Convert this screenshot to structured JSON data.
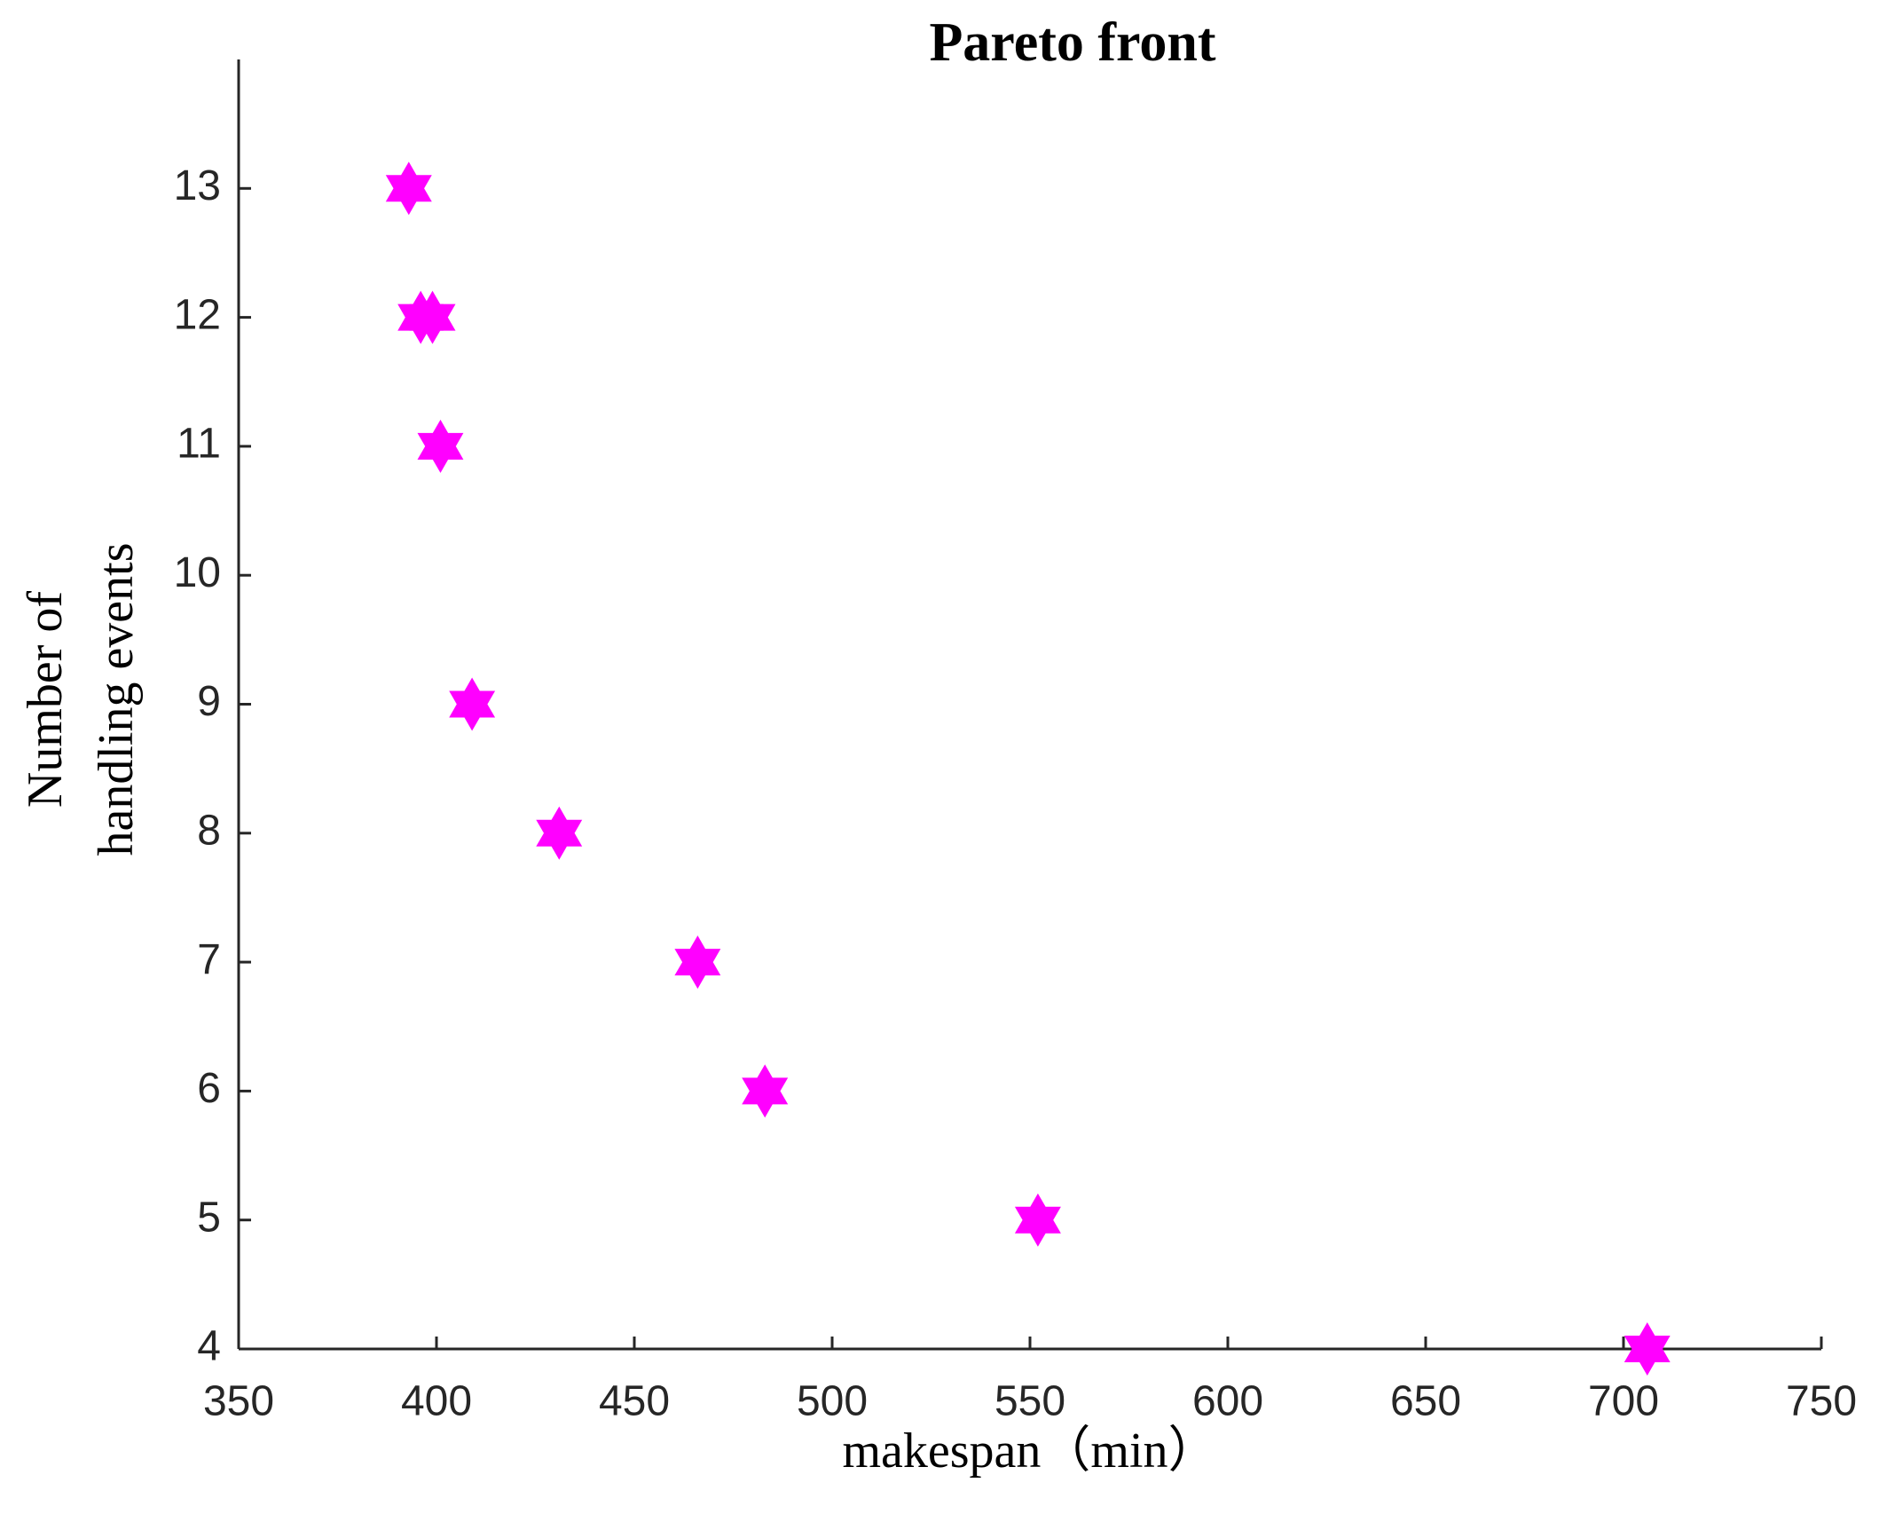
{
  "chart_data": {
    "type": "scatter",
    "title": "Pareto front",
    "xlabel": "makespan（min）",
    "ylabel": [
      "Number of",
      "handling events"
    ],
    "x": [
      393,
      396,
      399,
      401,
      409,
      431,
      466,
      483,
      552,
      706
    ],
    "series": [
      {
        "name": "Pareto front",
        "color": "#ff00ff",
        "values": [
          13,
          12,
          12,
          11,
          9,
          8,
          7,
          6,
          5,
          4
        ]
      }
    ],
    "xlim": [
      350,
      750
    ],
    "xticks": [
      350,
      400,
      450,
      500,
      550,
      600,
      650,
      700,
      750
    ],
    "ylim": [
      4,
      14
    ],
    "yticks": [
      4,
      5,
      6,
      7,
      8,
      9,
      10,
      11,
      12,
      13
    ],
    "grid": false
  }
}
